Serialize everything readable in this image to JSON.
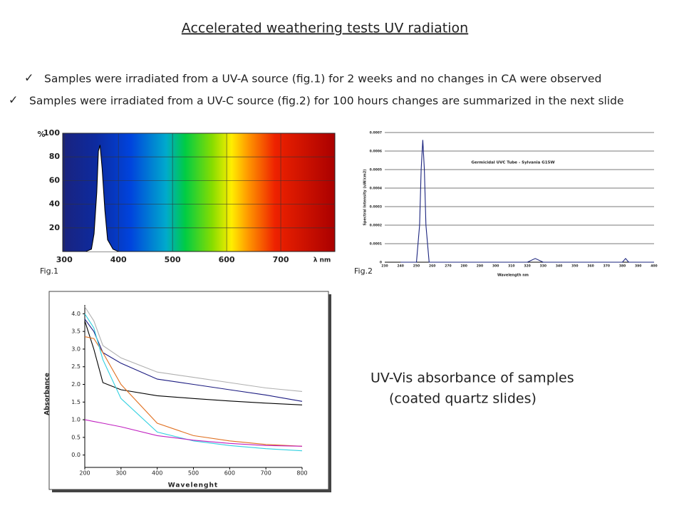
{
  "title": "Accelerated weathering tests UV radiation",
  "bullets": [
    "Samples were irradiated from a UV-A source (fig.1) for 2 weeks and no changes in CA were observed",
    "Samples were irradiated from a UV-C source (fig.2) for 100 hours changes are summarized in the next slide"
  ],
  "captions": [
    "Fig.1",
    "Fig.2"
  ],
  "description": [
    "UV-Vis absorbance of samples",
    "(coated quartz slides)"
  ],
  "chart_data": [
    {
      "type": "line",
      "xlabel": "λ nm",
      "ylabel": "%",
      "x": [
        340,
        350,
        355,
        360,
        363,
        366,
        370,
        375,
        380,
        390,
        400
      ],
      "values": [
        0,
        2,
        15,
        50,
        85,
        90,
        70,
        35,
        10,
        2,
        0
      ],
      "color": "#000000",
      "fill": "#ffffff",
      "xlim": [
        297,
        800
      ],
      "ylim": [
        0,
        100
      ],
      "xticks": [
        300,
        400,
        500,
        600,
        700
      ],
      "yticks": [
        20,
        40,
        60,
        80,
        100
      ],
      "grid": "both"
    },
    {
      "type": "line",
      "title": "Germicidal UVC Tube - Sylvania G15W",
      "xlabel": "Wavelength nm",
      "ylabel": "Spectral Intensity (uW/cm2)",
      "x": [
        240,
        250,
        252,
        253,
        254,
        255,
        256,
        258,
        270,
        300,
        320,
        325,
        330,
        370,
        380,
        382,
        384,
        400
      ],
      "values": [
        0,
        0,
        0.0002,
        0.0005,
        0.00066,
        0.0005,
        0.0002,
        0,
        0,
        0,
        0,
        2e-05,
        0,
        0,
        0,
        2e-05,
        0,
        0
      ],
      "color": "#1a237e",
      "xlim": [
        230,
        400
      ],
      "ylim": [
        0,
        0.0007
      ],
      "xticks": [
        230,
        240,
        250,
        260,
        270,
        280,
        290,
        300,
        310,
        320,
        330,
        340,
        350,
        360,
        370,
        380,
        390,
        400
      ],
      "yticks": [
        0,
        0.0001,
        0.0002,
        0.0003,
        0.0004,
        0.0005,
        0.0006,
        0.0007
      ],
      "grid": "y"
    },
    {
      "type": "line",
      "xlabel": "Wavelenght",
      "ylabel": "Absorbance",
      "x": [
        200,
        225,
        250,
        300,
        400,
        500,
        600,
        700,
        800
      ],
      "series": [
        {
          "color": "#b0b0b0",
          "values": [
            4.2,
            3.8,
            3.1,
            2.75,
            2.35,
            2.2,
            2.05,
            1.9,
            1.8
          ]
        },
        {
          "color": "#1a1a80",
          "values": [
            3.85,
            3.5,
            2.9,
            2.6,
            2.15,
            2.0,
            1.85,
            1.7,
            1.52
          ]
        },
        {
          "color": "#000000",
          "values": [
            3.8,
            3.0,
            2.05,
            1.85,
            1.68,
            1.6,
            1.53,
            1.47,
            1.42
          ]
        },
        {
          "color": "#e07020",
          "values": [
            3.35,
            3.3,
            2.9,
            2.0,
            0.9,
            0.55,
            0.4,
            0.3,
            0.25
          ]
        },
        {
          "color": "#30d0e0",
          "values": [
            4.0,
            3.6,
            2.7,
            1.6,
            0.65,
            0.4,
            0.27,
            0.18,
            0.12
          ]
        },
        {
          "color": "#c020c0",
          "values": [
            1.0,
            0.95,
            0.9,
            0.8,
            0.55,
            0.42,
            0.33,
            0.27,
            0.25
          ]
        }
      ],
      "xlim": [
        200,
        800
      ],
      "ylim": [
        -0.35,
        4.25
      ],
      "xticks": [
        200,
        300,
        400,
        500,
        600,
        700,
        800
      ],
      "yticks": [
        {
          "value": 0,
          "label": "0.0"
        },
        {
          "value": 0.5,
          "label": "0.5"
        },
        {
          "value": 1,
          "label": "1.0"
        },
        {
          "value": 1.5,
          "label": "1.5"
        },
        {
          "value": 2,
          "label": "2.0"
        },
        {
          "value": 2.5,
          "label": "2.5"
        },
        {
          "value": 3,
          "label": "3.0"
        },
        {
          "value": 3.5,
          "label": "3.5"
        },
        {
          "value": 4,
          "label": "4.0"
        }
      ],
      "grid": false
    }
  ]
}
